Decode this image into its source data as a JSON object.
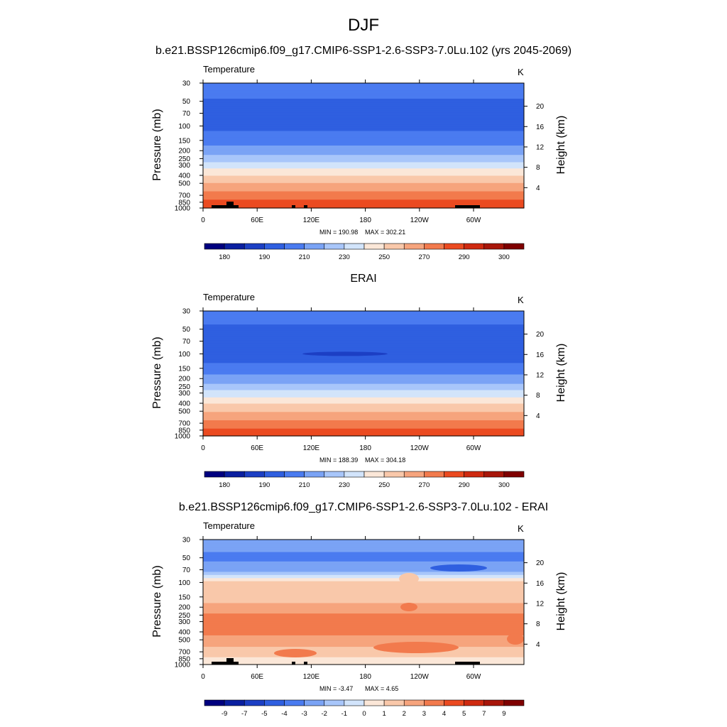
{
  "figure": {
    "title": "DJF",
    "variable": "Temperature",
    "units": "K",
    "left_axis_label": "Pressure (mb)",
    "right_axis_label": "Height (km)"
  },
  "chart_data": [
    {
      "type": "heatmap",
      "title": "b.e21.BSSP126cmip6.f09_g17.CMIP6-SSP1-2.6-SSP3-7.0Lu.102 (yrs 2045-2069)",
      "variable": "Temperature",
      "units": "K",
      "min_label": "MIN = 190.98",
      "max_label": "MAX = 302.21",
      "x_ticks": [
        "0",
        "60E",
        "120E",
        "180",
        "120W",
        "60W"
      ],
      "y_ticks": [
        30,
        50,
        70,
        100,
        150,
        200,
        250,
        300,
        400,
        500,
        700,
        850,
        1000
      ],
      "height_ticks_km": [
        4,
        8,
        12,
        16,
        20
      ],
      "xlabel": "",
      "ylabel": "Pressure (mb)",
      "y2label": "Height (km)",
      "levels": [
        180,
        185,
        190,
        200,
        210,
        220,
        230,
        240,
        250,
        260,
        270,
        280,
        290,
        295,
        300
      ],
      "colorbar_labels": [
        "180",
        "190",
        "210",
        "230",
        "250",
        "270",
        "290",
        "300"
      ],
      "profile": [
        {
          "p": 30,
          "v": 207
        },
        {
          "p": 50,
          "v": 199
        },
        {
          "p": 70,
          "v": 196
        },
        {
          "p": 100,
          "v": 197
        },
        {
          "p": 150,
          "v": 205
        },
        {
          "p": 200,
          "v": 215
        },
        {
          "p": 250,
          "v": 225
        },
        {
          "p": 300,
          "v": 235
        },
        {
          "p": 400,
          "v": 250
        },
        {
          "p": 500,
          "v": 260
        },
        {
          "p": 700,
          "v": 275
        },
        {
          "p": 850,
          "v": 283
        },
        {
          "p": 1000,
          "v": 290
        }
      ]
    },
    {
      "type": "heatmap",
      "title": "ERAI",
      "variable": "Temperature",
      "units": "K",
      "min_label": "MIN = 188.39",
      "max_label": "MAX = 304.18",
      "x_ticks": [
        "0",
        "60E",
        "120E",
        "180",
        "120W",
        "60W"
      ],
      "y_ticks": [
        30,
        50,
        70,
        100,
        150,
        200,
        250,
        300,
        400,
        500,
        700,
        850,
        1000
      ],
      "height_ticks_km": [
        4,
        8,
        12,
        16,
        20
      ],
      "xlabel": "",
      "ylabel": "Pressure (mb)",
      "y2label": "Height (km)",
      "levels": [
        180,
        185,
        190,
        200,
        210,
        220,
        230,
        240,
        250,
        260,
        270,
        280,
        290,
        295,
        300
      ],
      "colorbar_labels": [
        "180",
        "190",
        "210",
        "230",
        "250",
        "270",
        "290",
        "300"
      ],
      "profile": [
        {
          "p": 30,
          "v": 206
        },
        {
          "p": 50,
          "v": 198
        },
        {
          "p": 70,
          "v": 195
        },
        {
          "p": 100,
          "v": 195
        },
        {
          "p": 150,
          "v": 203
        },
        {
          "p": 200,
          "v": 214
        },
        {
          "p": 250,
          "v": 224
        },
        {
          "p": 300,
          "v": 234
        },
        {
          "p": 400,
          "v": 249
        },
        {
          "p": 500,
          "v": 259
        },
        {
          "p": 700,
          "v": 274
        },
        {
          "p": 850,
          "v": 282
        },
        {
          "p": 1000,
          "v": 289
        }
      ]
    },
    {
      "type": "heatmap",
      "title": "b.e21.BSSP126cmip6.f09_g17.CMIP6-SSP1-2.6-SSP3-7.0Lu.102 - ERAI",
      "variable": "Temperature",
      "units": "K",
      "min_label": "MIN =  -3.47",
      "max_label": "MAX =   4.65",
      "x_ticks": [
        "0",
        "60E",
        "120E",
        "180",
        "120W",
        "60W"
      ],
      "y_ticks": [
        30,
        50,
        70,
        100,
        150,
        200,
        250,
        300,
        400,
        500,
        700,
        850,
        1000
      ],
      "height_ticks_km": [
        4,
        8,
        12,
        16,
        20
      ],
      "xlabel": "",
      "ylabel": "Pressure (mb)",
      "y2label": "Height (km)",
      "levels": [
        -9,
        -7,
        -5,
        -4,
        -3,
        -2,
        -1,
        0,
        1,
        2,
        3,
        4,
        5,
        7,
        9
      ],
      "colorbar_labels": [
        "-9",
        "-7",
        "-5",
        "-4",
        "-3",
        "-2",
        "-1",
        "0",
        "1",
        "2",
        "3",
        "4",
        "5",
        "7",
        "9"
      ],
      "profile": [
        {
          "p": 30,
          "v": -2.5
        },
        {
          "p": 50,
          "v": -3.2
        },
        {
          "p": 70,
          "v": -2.5
        },
        {
          "p": 85,
          "v": -0.5
        },
        {
          "p": 100,
          "v": 1.5
        },
        {
          "p": 150,
          "v": 1.6
        },
        {
          "p": 200,
          "v": 2.3
        },
        {
          "p": 250,
          "v": 3.2
        },
        {
          "p": 300,
          "v": 3.4
        },
        {
          "p": 400,
          "v": 3.3
        },
        {
          "p": 500,
          "v": 2.6
        },
        {
          "p": 700,
          "v": 1.5
        },
        {
          "p": 850,
          "v": 0.8
        },
        {
          "p": 1000,
          "v": 0.5
        }
      ]
    }
  ],
  "colormap": [
    "#00007f",
    "#0a1fa0",
    "#1c3fc4",
    "#2f5fe0",
    "#4a7bf0",
    "#7aa3f5",
    "#a8c6fa",
    "#d2e4fb",
    "#fbe7d8",
    "#f9c8aa",
    "#f6a47d",
    "#f27a4d",
    "#eb4a20",
    "#cf2a10",
    "#a8160a",
    "#7f0000"
  ]
}
